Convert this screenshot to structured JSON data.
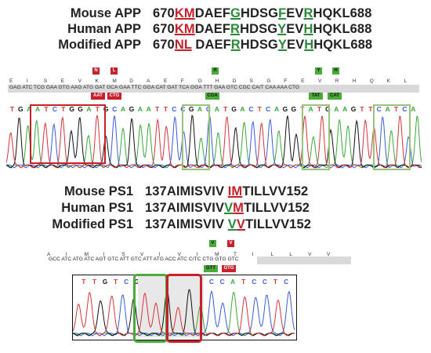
{
  "app": {
    "rows": [
      {
        "label": "Mouse APP",
        "segments": [
          {
            "t": "670",
            "s": ""
          },
          {
            "t": "KM",
            "s": "red"
          },
          {
            "t": "DAEF",
            "s": ""
          },
          {
            "t": "G",
            "s": "green"
          },
          {
            "t": "HDSG",
            "s": ""
          },
          {
            "t": "F",
            "s": "green"
          },
          {
            "t": "EV",
            "s": ""
          },
          {
            "t": "R",
            "s": "green"
          },
          {
            "t": "HQKL688",
            "s": ""
          }
        ]
      },
      {
        "label": "Human APP",
        "segments": [
          {
            "t": "670",
            "s": ""
          },
          {
            "t": "KM",
            "s": "red"
          },
          {
            "t": "DAEF",
            "s": ""
          },
          {
            "t": "R",
            "s": "green"
          },
          {
            "t": "HDSG",
            "s": ""
          },
          {
            "t": "Y",
            "s": "green"
          },
          {
            "t": "EV",
            "s": ""
          },
          {
            "t": "H",
            "s": "green"
          },
          {
            "t": "HQKL688",
            "s": ""
          }
        ]
      },
      {
        "label": "Modified APP",
        "segments": [
          {
            "t": "670",
            "s": ""
          },
          {
            "t": "NL",
            "s": "red"
          },
          {
            "t": " DAEF",
            "s": ""
          },
          {
            "t": "R",
            "s": "green"
          },
          {
            "t": "HDSG",
            "s": ""
          },
          {
            "t": "Y",
            "s": "green"
          },
          {
            "t": "EV",
            "s": ""
          },
          {
            "t": "H",
            "s": "green"
          },
          {
            "t": "HQKL688",
            "s": ""
          }
        ]
      }
    ],
    "aa_letters": [
      "E",
      "I",
      "S",
      "E",
      "V",
      "K",
      "M",
      "D",
      "A",
      "E",
      "F",
      "G",
      "H",
      "D",
      "S",
      "G",
      "F",
      "E",
      "V",
      "R",
      "H",
      "Q",
      "K",
      "L"
    ],
    "mut_aa_top": {
      "K": "N",
      "M": "L",
      "G": "R",
      "F": "Y",
      "R": "H"
    },
    "codon_line": "GAG ATC TCG GAA GTG AAG ATG GAT GCA GAA TTC GGA CAT GAT TCA GGA TTT GAA GTC CGC CA/T CAA AAA CTG",
    "mut_codons": [
      {
        "text": "AAT",
        "color": "red"
      },
      {
        "text": "CTG",
        "color": "red"
      },
      {
        "text": "CGA",
        "color": "green"
      },
      {
        "text": "TAT",
        "color": "green"
      },
      {
        "text": "CAT",
        "color": "green"
      }
    ],
    "trace_bases": "TGAATCTGGATGCAGAATTCCGACATGACTCAGGTATGAAGTTCATCA"
  },
  "ps1": {
    "rows": [
      {
        "label": "Mouse PS1",
        "segments": [
          {
            "t": "137AIMISVIV ",
            "s": ""
          },
          {
            "t": "IM",
            "s": "red"
          },
          {
            "t": "TILLVV152",
            "s": ""
          }
        ]
      },
      {
        "label": "Human PS1",
        "segments": [
          {
            "t": "137AIMISVIV",
            "s": ""
          },
          {
            "t": "V",
            "s": "green"
          },
          {
            "t": "M",
            "s": "red"
          },
          {
            "t": "TILLVV152",
            "s": ""
          }
        ]
      },
      {
        "label": "Modified PS1",
        "segments": [
          {
            "t": "137AIMISVIV ",
            "s": ""
          },
          {
            "t": "V",
            "s": "green"
          },
          {
            "t": "V",
            "s": "red"
          },
          {
            "t": "TILLVV152",
            "s": ""
          }
        ]
      }
    ],
    "aa_letters": [
      "A",
      "I",
      "M",
      "I",
      "S",
      "V",
      "I",
      "V",
      "I",
      "M",
      "T",
      "I",
      "L",
      "L",
      "V",
      "V"
    ],
    "mut_aa_top": {
      "I": "V",
      "M": "V"
    },
    "codon_line": "GCC ATC ATG ATC AGT GTC ATT GTC ATT ATG ACC ATC C/TC CTG GTG GTC",
    "mut_codons": [
      {
        "text": "GTT",
        "color": "green"
      },
      {
        "text": "GTG",
        "color": "red"
      }
    ],
    "trace_bases": "TTGTCGTTGTGACCATCCTC"
  },
  "colors": {
    "red": "#c8202a",
    "green": "#2a8a3a",
    "A": "#3aa83a",
    "C": "#3b5bd9",
    "G": "#111111",
    "T": "#d8323a"
  }
}
